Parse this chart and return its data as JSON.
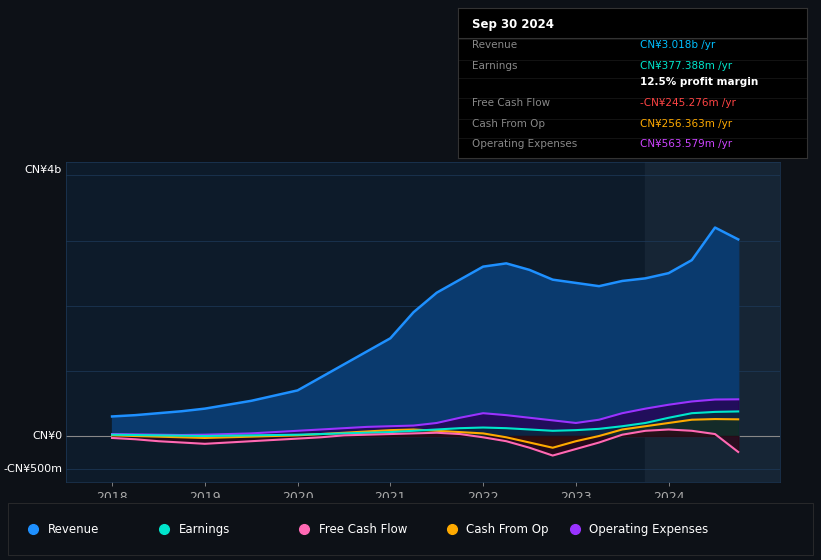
{
  "bg_color": "#0d1117",
  "chart_bg": "#0d1b2a",
  "title": "Sep 30 2024",
  "ylabel_top": "CN¥4b",
  "ylabel_zero": "CN¥0",
  "ylabel_neg": "-CN¥500m",
  "xlabel_ticks": [
    "2018",
    "2019",
    "2020",
    "2021",
    "2022",
    "2023",
    "2024"
  ],
  "ylim": [
    -700000000,
    4200000000
  ],
  "xlim": [
    2017.5,
    2025.2
  ],
  "highlight_x_start": 2023.75,
  "highlight_x_end": 2025.2,
  "grid_lines": [
    4000000000,
    3000000000,
    2000000000,
    1000000000,
    0,
    -500000000
  ],
  "series": {
    "Revenue": {
      "color": "#1e90ff",
      "fill_color": "#0a3a6e",
      "x": [
        2018.0,
        2018.25,
        2018.5,
        2018.75,
        2019.0,
        2019.25,
        2019.5,
        2019.75,
        2020.0,
        2020.25,
        2020.5,
        2020.75,
        2021.0,
        2021.25,
        2021.5,
        2021.75,
        2022.0,
        2022.25,
        2022.5,
        2022.75,
        2023.0,
        2023.25,
        2023.5,
        2023.75,
        2024.0,
        2024.25,
        2024.5,
        2024.75
      ],
      "y": [
        300000000,
        320000000,
        350000000,
        380000000,
        420000000,
        480000000,
        540000000,
        620000000,
        700000000,
        900000000,
        1100000000,
        1300000000,
        1500000000,
        1900000000,
        2200000000,
        2400000000,
        2600000000,
        2650000000,
        2550000000,
        2400000000,
        2350000000,
        2300000000,
        2380000000,
        2420000000,
        2500000000,
        2700000000,
        3200000000,
        3018000000
      ]
    },
    "Earnings": {
      "color": "#00e5cc",
      "fill_color": "#003333",
      "x": [
        2018.0,
        2018.25,
        2018.5,
        2018.75,
        2019.0,
        2019.25,
        2019.5,
        2019.75,
        2020.0,
        2020.25,
        2020.5,
        2020.75,
        2021.0,
        2021.25,
        2021.5,
        2021.75,
        2022.0,
        2022.25,
        2022.5,
        2022.75,
        2023.0,
        2023.25,
        2023.5,
        2023.75,
        2024.0,
        2024.25,
        2024.5,
        2024.75
      ],
      "y": [
        20000000,
        15000000,
        10000000,
        5000000,
        0,
        5000000,
        10000000,
        15000000,
        20000000,
        30000000,
        40000000,
        50000000,
        60000000,
        80000000,
        100000000,
        120000000,
        130000000,
        120000000,
        100000000,
        80000000,
        90000000,
        110000000,
        150000000,
        200000000,
        280000000,
        350000000,
        370000000,
        377000000
      ]
    },
    "FreeCashFlow": {
      "color": "#ff69b4",
      "fill_color": "#330011",
      "x": [
        2018.0,
        2018.25,
        2018.5,
        2018.75,
        2019.0,
        2019.25,
        2019.5,
        2019.75,
        2020.0,
        2020.25,
        2020.5,
        2020.75,
        2021.0,
        2021.25,
        2021.5,
        2021.75,
        2022.0,
        2022.25,
        2022.5,
        2022.75,
        2023.0,
        2023.25,
        2023.5,
        2023.75,
        2024.0,
        2024.25,
        2024.5,
        2024.75
      ],
      "y": [
        -30000000,
        -50000000,
        -80000000,
        -100000000,
        -120000000,
        -100000000,
        -80000000,
        -60000000,
        -40000000,
        -20000000,
        10000000,
        20000000,
        30000000,
        40000000,
        50000000,
        30000000,
        -20000000,
        -80000000,
        -180000000,
        -300000000,
        -200000000,
        -100000000,
        20000000,
        80000000,
        100000000,
        80000000,
        30000000,
        -245000000
      ]
    },
    "CashFromOp": {
      "color": "#ffaa00",
      "fill_color": "#332200",
      "x": [
        2018.0,
        2018.25,
        2018.5,
        2018.75,
        2019.0,
        2019.25,
        2019.5,
        2019.75,
        2020.0,
        2020.25,
        2020.5,
        2020.75,
        2021.0,
        2021.25,
        2021.5,
        2021.75,
        2022.0,
        2022.25,
        2022.5,
        2022.75,
        2023.0,
        2023.25,
        2023.5,
        2023.75,
        2024.0,
        2024.25,
        2024.5,
        2024.75
      ],
      "y": [
        10000000,
        0,
        -10000000,
        -20000000,
        -30000000,
        -20000000,
        -10000000,
        0,
        10000000,
        30000000,
        50000000,
        70000000,
        90000000,
        100000000,
        80000000,
        60000000,
        40000000,
        -20000000,
        -100000000,
        -180000000,
        -80000000,
        0,
        100000000,
        150000000,
        200000000,
        250000000,
        260000000,
        256000000
      ]
    },
    "OperatingExpenses": {
      "color": "#9933ff",
      "fill_color": "#1a0033",
      "x": [
        2018.0,
        2018.25,
        2018.5,
        2018.75,
        2019.0,
        2019.25,
        2019.5,
        2019.75,
        2020.0,
        2020.25,
        2020.5,
        2020.75,
        2021.0,
        2021.25,
        2021.5,
        2021.75,
        2022.0,
        2022.25,
        2022.5,
        2022.75,
        2023.0,
        2023.25,
        2023.5,
        2023.75,
        2024.0,
        2024.25,
        2024.5,
        2024.75
      ],
      "y": [
        30000000,
        25000000,
        20000000,
        15000000,
        20000000,
        30000000,
        40000000,
        60000000,
        80000000,
        100000000,
        120000000,
        140000000,
        150000000,
        160000000,
        200000000,
        280000000,
        350000000,
        320000000,
        280000000,
        240000000,
        200000000,
        250000000,
        350000000,
        420000000,
        480000000,
        530000000,
        560000000,
        563000000
      ]
    }
  },
  "tooltip": {
    "title": "Sep 30 2024",
    "rows": [
      {
        "label": "Revenue",
        "value": "CN¥3.018b /yr",
        "value_color": "#00bfff"
      },
      {
        "label": "Earnings",
        "value": "CN¥377.388m /yr",
        "value_color": "#00e5cc"
      },
      {
        "label": "",
        "value": "12.5% profit margin",
        "value_color": "#ffffff"
      },
      {
        "label": "Free Cash Flow",
        "value": "-CN¥245.276m /yr",
        "value_color": "#ff4444"
      },
      {
        "label": "Cash From Op",
        "value": "CN¥256.363m /yr",
        "value_color": "#ffaa00"
      },
      {
        "label": "Operating Expenses",
        "value": "CN¥563.579m /yr",
        "value_color": "#cc44ff"
      }
    ]
  },
  "legend": [
    {
      "label": "Revenue",
      "color": "#1e90ff"
    },
    {
      "label": "Earnings",
      "color": "#00e5cc"
    },
    {
      "label": "Free Cash Flow",
      "color": "#ff69b4"
    },
    {
      "label": "Cash From Op",
      "color": "#ffaa00"
    },
    {
      "label": "Operating Expenses",
      "color": "#9933ff"
    }
  ]
}
